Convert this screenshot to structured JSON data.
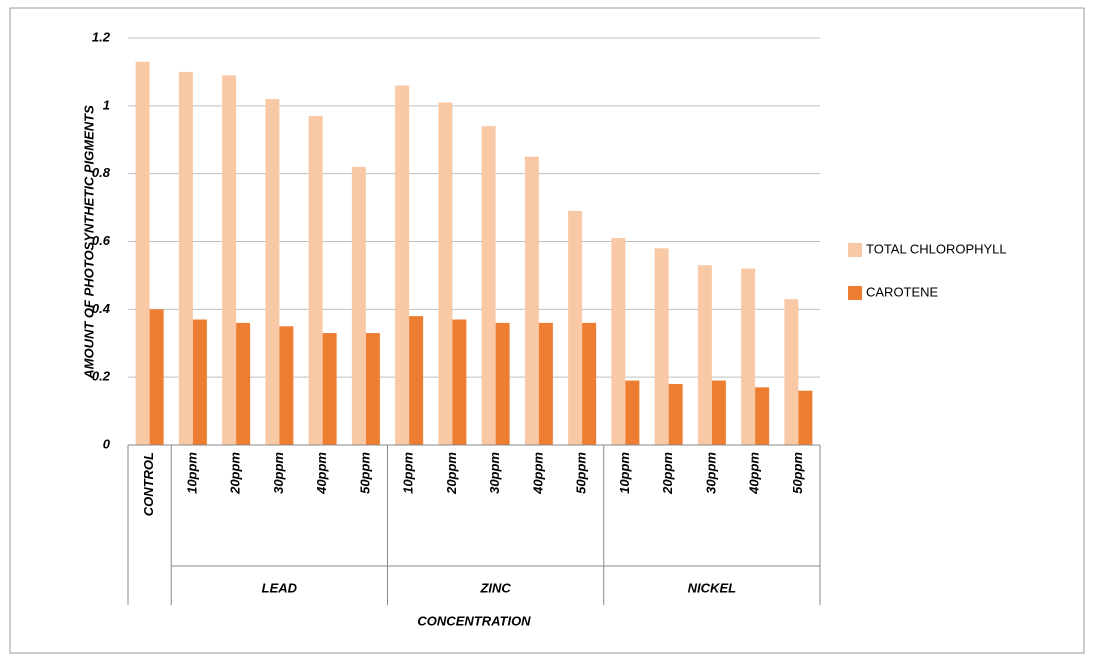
{
  "chart_data": {
    "type": "bar",
    "x_label": "CONCENTRATION",
    "y_label": "AMOUNT OF PHOTOSYNTHETIC PIGMENTS",
    "categories": [
      "CONTROL",
      "10ppm",
      "20ppm",
      "30ppm",
      "40ppm",
      "50ppm",
      "10ppm",
      "20ppm",
      "30ppm",
      "40ppm",
      "50ppm",
      "10ppm",
      "20ppm",
      "30ppm",
      "40ppm",
      "50ppm"
    ],
    "category_groups": [
      null,
      "LEAD",
      "LEAD",
      "LEAD",
      "LEAD",
      "LEAD",
      "ZINC",
      "ZINC",
      "ZINC",
      "ZINC",
      "ZINC",
      "NICKEL",
      "NICKEL",
      "NICKEL",
      "NICKEL",
      "NICKEL"
    ],
    "series": [
      {
        "name": "TOTAL CHLOROPHYLL",
        "color": "#f9c9a6",
        "values": [
          1.13,
          1.1,
          1.09,
          1.02,
          0.97,
          0.82,
          1.06,
          1.01,
          0.94,
          0.85,
          0.69,
          0.61,
          0.58,
          0.53,
          0.52,
          0.43
        ]
      },
      {
        "name": "CAROTENE",
        "color": "#ed7d31",
        "values": [
          0.4,
          0.37,
          0.36,
          0.35,
          0.33,
          0.33,
          0.38,
          0.37,
          0.36,
          0.36,
          0.36,
          0.19,
          0.18,
          0.19,
          0.17,
          0.16
        ]
      }
    ],
    "ylim": [
      0,
      1.2
    ],
    "yticks": [
      0,
      0.2,
      0.4,
      0.6,
      0.8,
      1,
      1.2
    ],
    "grid": true,
    "legend": "right"
  }
}
